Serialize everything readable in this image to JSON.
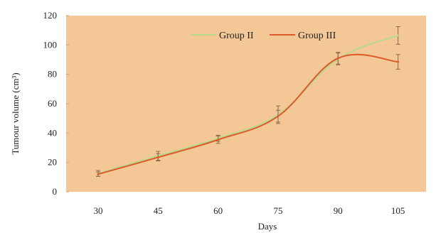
{
  "chart_data": {
    "type": "line",
    "title": "",
    "xlabel": "Days",
    "ylabel": "Tumour volume (cm³)",
    "x": [
      30,
      45,
      60,
      75,
      90,
      105
    ],
    "xlim": [
      22,
      112
    ],
    "ylim": [
      0,
      120
    ],
    "yticks": [
      0,
      20,
      40,
      60,
      80,
      100,
      120
    ],
    "grid": false,
    "legend": "top-center",
    "background": "#f4c797",
    "series": [
      {
        "name": "Group II",
        "color": "#b9d98a",
        "values": [
          12.5,
          24.5,
          36.5,
          52.5,
          90.5,
          106.5
        ],
        "error": [
          2,
          3,
          2,
          6,
          4,
          6
        ]
      },
      {
        "name": "Group III",
        "color": "#de5a2a",
        "values": [
          12,
          23.5,
          35.5,
          51.5,
          91,
          88.5
        ],
        "error": [
          1.5,
          2.5,
          2.5,
          4,
          4,
          5
        ]
      }
    ]
  }
}
